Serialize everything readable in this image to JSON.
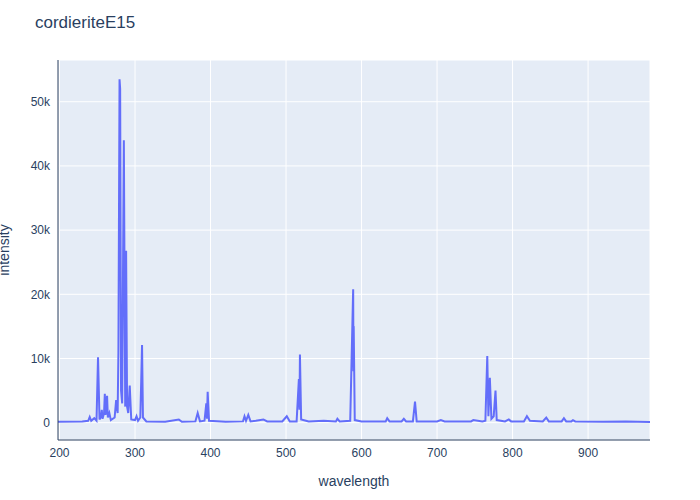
{
  "chart_data": {
    "type": "line",
    "title": "cordieriteE15",
    "x_label": "wavelength",
    "y_label": "intensity",
    "color": "#636efa",
    "grid": true,
    "xlim": [
      198,
      982
    ],
    "xticks": [
      200,
      300,
      400,
      500,
      600,
      700,
      800,
      900
    ],
    "ylim": [
      -2700,
      56500
    ],
    "yticks": [
      0,
      {
        "value": 10000,
        "label": "10k"
      },
      {
        "value": 20000,
        "label": "20k"
      },
      {
        "value": 30000,
        "label": "30k"
      },
      {
        "value": 40000,
        "label": "40k"
      },
      {
        "value": 50000,
        "label": "50k"
      }
    ],
    "x": [
      198,
      230,
      238,
      240,
      242,
      246,
      249,
      251,
      253,
      255,
      256,
      257,
      259,
      260,
      261,
      262,
      263,
      264,
      266,
      268,
      273,
      275,
      277,
      278,
      279.5,
      280.3,
      281.5,
      283,
      285.2,
      287,
      288.2,
      289.5,
      291,
      293,
      295,
      300,
      302,
      304,
      307,
      308.2,
      309.3,
      310.5,
      315,
      340,
      358,
      362,
      380,
      383,
      386,
      392,
      394.4,
      395.3,
      396.2,
      398,
      420,
      443,
      445,
      447,
      450,
      453,
      460,
      470,
      475,
      495,
      501,
      505,
      514,
      517,
      517.8,
      518.4,
      520,
      530,
      550,
      566,
      568,
      571,
      585,
      588.9,
      589.3,
      589.6,
      591,
      600,
      632,
      634,
      637,
      653,
      656,
      659,
      668,
      670.8,
      673,
      700,
      705,
      710,
      745,
      748,
      760,
      764,
      766.5,
      768,
      769.9,
      772,
      775,
      777.4,
      779,
      790,
      795,
      798,
      815,
      819,
      823,
      840,
      844.6,
      848,
      865,
      868,
      871,
      878,
      880,
      883,
      920,
      950,
      982
    ],
    "values": [
      150,
      200,
      300,
      900,
      300,
      700,
      300,
      10200,
      500,
      1000,
      2000,
      600,
      1500,
      4500,
      1200,
      2500,
      4200,
      800,
      1500,
      400,
      800,
      3500,
      1500,
      11000,
      53500,
      52000,
      5000,
      3000,
      44000,
      2500,
      26800,
      2500,
      1500,
      5800,
      500,
      400,
      1000,
      300,
      800,
      6500,
      12100,
      800,
      200,
      150,
      500,
      150,
      200,
      1500,
      200,
      300,
      3000,
      600,
      4800,
      300,
      150,
      200,
      1000,
      300,
      1200,
      200,
      300,
      500,
      200,
      200,
      1000,
      200,
      200,
      6800,
      2000,
      10600,
      500,
      200,
      300,
      200,
      600,
      200,
      300,
      20800,
      8000,
      15000,
      400,
      200,
      200,
      700,
      200,
      200,
      600,
      200,
      200,
      3300,
      200,
      200,
      400,
      200,
      200,
      400,
      200,
      300,
      10400,
      1000,
      7000,
      600,
      1000,
      5000,
      400,
      200,
      500,
      200,
      200,
      1000,
      300,
      200,
      800,
      200,
      200,
      700,
      200,
      200,
      400,
      200,
      150,
      200,
      100
    ]
  }
}
